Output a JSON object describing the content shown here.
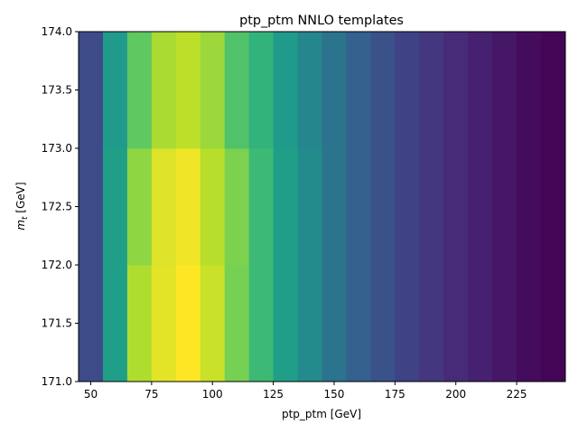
{
  "chart_data": {
    "type": "heatmap",
    "title": "ptp_ptm NNLO templates",
    "xlabel": "ptp_ptm [GeV]",
    "ylabel": "m_t [GeV]",
    "xlim": [
      45,
      245
    ],
    "ylim": [
      171.0,
      174.0
    ],
    "x_edges": [
      45,
      55,
      65,
      75,
      85,
      95,
      105,
      115,
      125,
      135,
      145,
      155,
      165,
      175,
      185,
      195,
      205,
      215,
      225,
      235,
      245
    ],
    "y_edges": [
      171.0,
      172.0,
      173.0,
      174.0
    ],
    "x_ticks": [
      50,
      75,
      100,
      125,
      150,
      175,
      200,
      225
    ],
    "y_ticks": [
      171.0,
      171.5,
      172.0,
      172.5,
      173.0,
      173.5,
      174.0
    ],
    "colormap": "viridis",
    "value_range": [
      0,
      1
    ],
    "values": [
      [
        0.23,
        0.56,
        0.88,
        0.96,
        1.0,
        0.92,
        0.79,
        0.68,
        0.56,
        0.48,
        0.38,
        0.31,
        0.25,
        0.2,
        0.16,
        0.12,
        0.09,
        0.06,
        0.03,
        0.01
      ],
      [
        0.23,
        0.56,
        0.83,
        0.95,
        0.98,
        0.89,
        0.8,
        0.68,
        0.56,
        0.48,
        0.38,
        0.31,
        0.25,
        0.2,
        0.16,
        0.12,
        0.09,
        0.06,
        0.03,
        0.01
      ],
      [
        0.23,
        0.54,
        0.75,
        0.87,
        0.9,
        0.85,
        0.72,
        0.65,
        0.54,
        0.46,
        0.38,
        0.31,
        0.25,
        0.2,
        0.16,
        0.12,
        0.09,
        0.06,
        0.03,
        0.01
      ]
    ]
  }
}
